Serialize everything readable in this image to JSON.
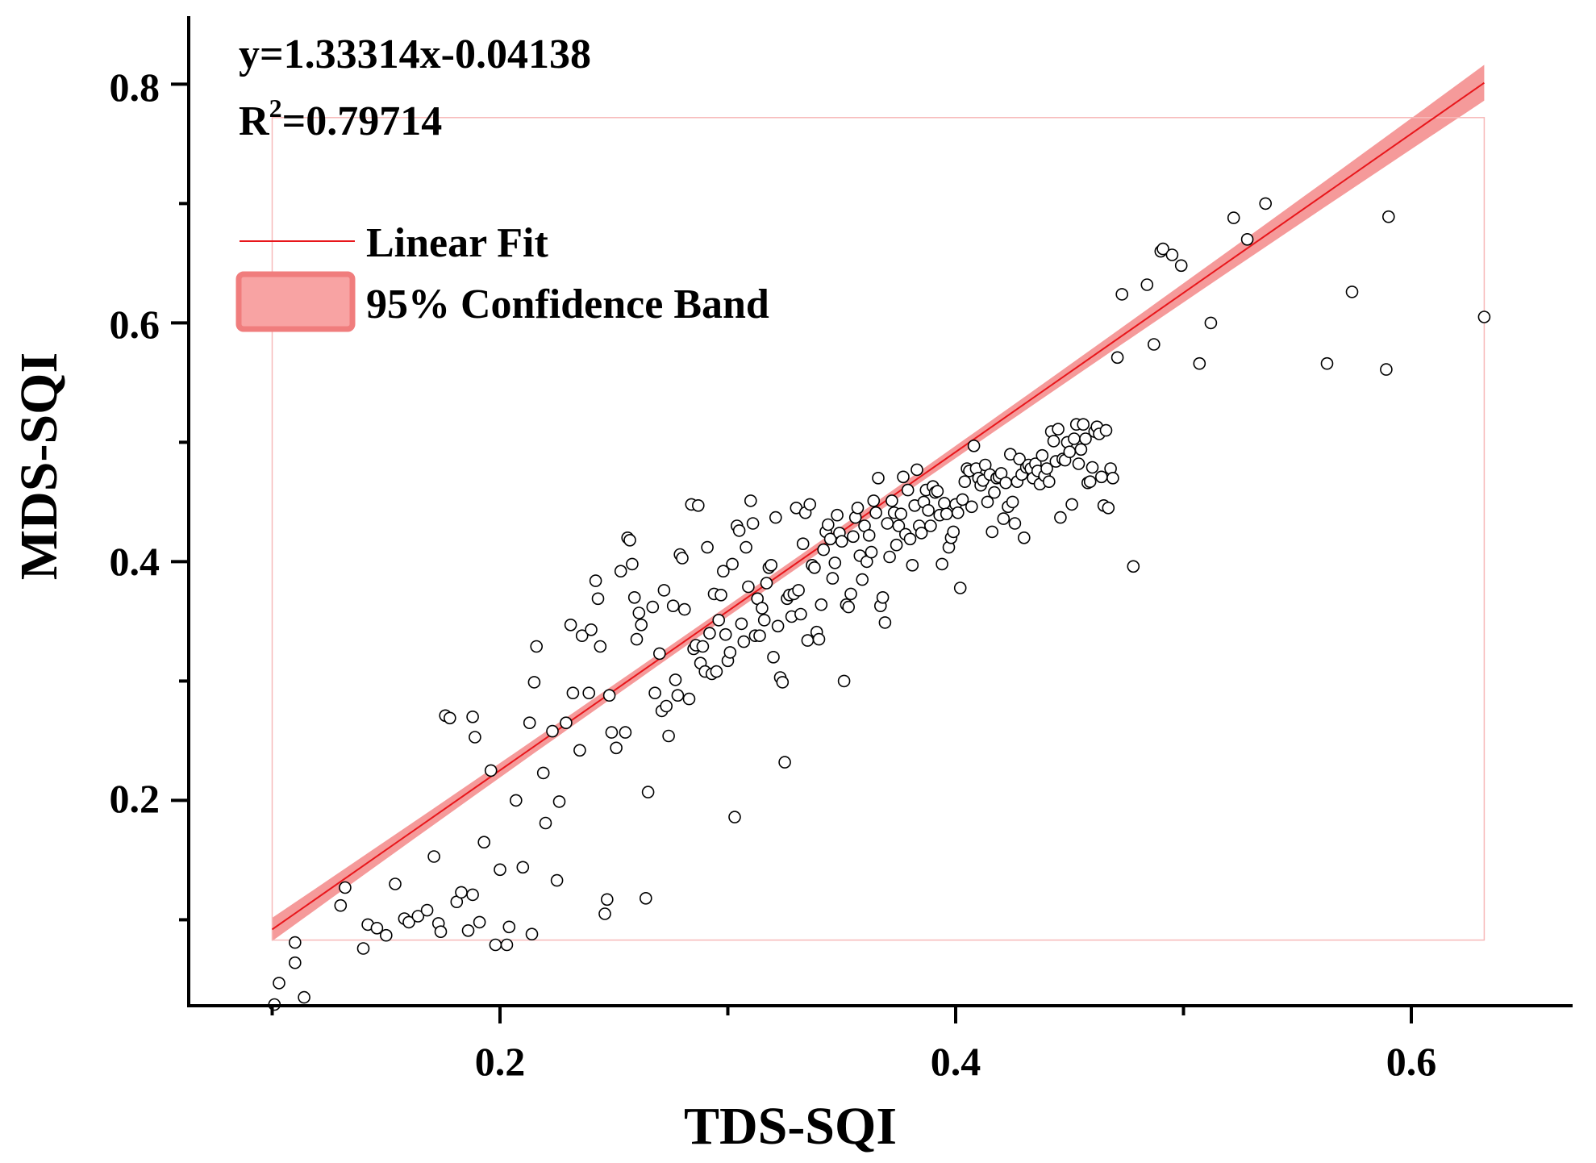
{
  "chart_data": {
    "type": "scatter",
    "xlabel": "TDS-SQI",
    "ylabel": "MDS-SQI",
    "xlim": [
      0.065,
      0.67
    ],
    "ylim": [
      0.028,
      0.857
    ],
    "x_major_ticks": [
      0.2,
      0.4,
      0.6
    ],
    "x_minor_ticks": [
      0.1,
      0.3,
      0.5
    ],
    "y_major_ticks": [
      0.2,
      0.4,
      0.6,
      0.8
    ],
    "y_minor_ticks": [
      0.1,
      0.3,
      0.5,
      0.7
    ],
    "x_tick_labels": [
      "0.2",
      "0.4",
      "0.6"
    ],
    "y_tick_labels": [
      "0.2",
      "0.4",
      "0.6",
      "0.8"
    ],
    "annotations": {
      "equation": "y=1.33314x-0.04138",
      "r2_prefix": "R",
      "r2_sup": "2",
      "r2_value": "=0.79714"
    },
    "legend": {
      "position": "top-left",
      "entries": [
        "Linear Fit",
        "95% Confidence Band"
      ]
    },
    "fit": {
      "slope": 1.33314,
      "intercept": -0.04138,
      "x_range": [
        0.1,
        0.632
      ],
      "color": "#e8161b"
    },
    "band": {
      "halfwidth_ends": 0.015,
      "halfwidth_center": 0.0045,
      "center_x": 0.32,
      "color": "#f59a9a"
    },
    "data_box": {
      "x": [
        0.1,
        0.632
      ],
      "y": [
        0.083,
        0.772
      ],
      "color": "#f7b9b9"
    },
    "points": [
      [
        0.101,
        0.029
      ],
      [
        0.103,
        0.047
      ],
      [
        0.11,
        0.064
      ],
      [
        0.11,
        0.081
      ],
      [
        0.114,
        0.035
      ],
      [
        0.13,
        0.112
      ],
      [
        0.132,
        0.127
      ],
      [
        0.14,
        0.076
      ],
      [
        0.142,
        0.096
      ],
      [
        0.146,
        0.093
      ],
      [
        0.15,
        0.087
      ],
      [
        0.154,
        0.13
      ],
      [
        0.158,
        0.101
      ],
      [
        0.16,
        0.098
      ],
      [
        0.164,
        0.103
      ],
      [
        0.168,
        0.108
      ],
      [
        0.171,
        0.153
      ],
      [
        0.173,
        0.097
      ],
      [
        0.174,
        0.09
      ],
      [
        0.176,
        0.271
      ],
      [
        0.178,
        0.269
      ],
      [
        0.181,
        0.115
      ],
      [
        0.183,
        0.123
      ],
      [
        0.186,
        0.091
      ],
      [
        0.188,
        0.121
      ],
      [
        0.188,
        0.27
      ],
      [
        0.189,
        0.253
      ],
      [
        0.191,
        0.098
      ],
      [
        0.193,
        0.165
      ],
      [
        0.196,
        0.225
      ],
      [
        0.198,
        0.079
      ],
      [
        0.2,
        0.142
      ],
      [
        0.203,
        0.079
      ],
      [
        0.204,
        0.094
      ],
      [
        0.207,
        0.2
      ],
      [
        0.21,
        0.144
      ],
      [
        0.213,
        0.265
      ],
      [
        0.214,
        0.088
      ],
      [
        0.215,
        0.299
      ],
      [
        0.216,
        0.329
      ],
      [
        0.219,
        0.223
      ],
      [
        0.22,
        0.181
      ],
      [
        0.223,
        0.258
      ],
      [
        0.225,
        0.133
      ],
      [
        0.226,
        0.199
      ],
      [
        0.229,
        0.265
      ],
      [
        0.231,
        0.347
      ],
      [
        0.232,
        0.29
      ],
      [
        0.235,
        0.242
      ],
      [
        0.236,
        0.338
      ],
      [
        0.239,
        0.29
      ],
      [
        0.24,
        0.343
      ],
      [
        0.242,
        0.384
      ],
      [
        0.243,
        0.369
      ],
      [
        0.244,
        0.329
      ],
      [
        0.246,
        0.105
      ],
      [
        0.247,
        0.117
      ],
      [
        0.248,
        0.288
      ],
      [
        0.249,
        0.257
      ],
      [
        0.251,
        0.244
      ],
      [
        0.253,
        0.392
      ],
      [
        0.255,
        0.257
      ],
      [
        0.256,
        0.42
      ],
      [
        0.257,
        0.418
      ],
      [
        0.258,
        0.398
      ],
      [
        0.259,
        0.37
      ],
      [
        0.26,
        0.335
      ],
      [
        0.261,
        0.357
      ],
      [
        0.262,
        0.347
      ],
      [
        0.264,
        0.118
      ],
      [
        0.265,
        0.207
      ],
      [
        0.267,
        0.362
      ],
      [
        0.268,
        0.29
      ],
      [
        0.27,
        0.323
      ],
      [
        0.271,
        0.275
      ],
      [
        0.272,
        0.376
      ],
      [
        0.273,
        0.279
      ],
      [
        0.274,
        0.254
      ],
      [
        0.276,
        0.363
      ],
      [
        0.277,
        0.301
      ],
      [
        0.278,
        0.288
      ],
      [
        0.279,
        0.406
      ],
      [
        0.28,
        0.403
      ],
      [
        0.281,
        0.36
      ],
      [
        0.283,
        0.285
      ],
      [
        0.284,
        0.448
      ],
      [
        0.285,
        0.327
      ],
      [
        0.286,
        0.33
      ],
      [
        0.287,
        0.447
      ],
      [
        0.288,
        0.315
      ],
      [
        0.289,
        0.329
      ],
      [
        0.29,
        0.308
      ],
      [
        0.291,
        0.412
      ],
      [
        0.292,
        0.34
      ],
      [
        0.293,
        0.306
      ],
      [
        0.294,
        0.373
      ],
      [
        0.295,
        0.308
      ],
      [
        0.296,
        0.351
      ],
      [
        0.297,
        0.372
      ],
      [
        0.298,
        0.392
      ],
      [
        0.299,
        0.339
      ],
      [
        0.3,
        0.317
      ],
      [
        0.301,
        0.324
      ],
      [
        0.302,
        0.398
      ],
      [
        0.303,
        0.186
      ],
      [
        0.304,
        0.43
      ],
      [
        0.305,
        0.426
      ],
      [
        0.306,
        0.348
      ],
      [
        0.307,
        0.333
      ],
      [
        0.308,
        0.412
      ],
      [
        0.309,
        0.379
      ],
      [
        0.31,
        0.451
      ],
      [
        0.311,
        0.432
      ],
      [
        0.312,
        0.338
      ],
      [
        0.313,
        0.369
      ],
      [
        0.314,
        0.338
      ],
      [
        0.315,
        0.361
      ],
      [
        0.316,
        0.351
      ],
      [
        0.317,
        0.382
      ],
      [
        0.318,
        0.395
      ],
      [
        0.319,
        0.397
      ],
      [
        0.32,
        0.32
      ],
      [
        0.321,
        0.437
      ],
      [
        0.322,
        0.346
      ],
      [
        0.323,
        0.303
      ],
      [
        0.324,
        0.299
      ],
      [
        0.325,
        0.232
      ],
      [
        0.326,
        0.369
      ],
      [
        0.327,
        0.372
      ],
      [
        0.328,
        0.354
      ],
      [
        0.329,
        0.373
      ],
      [
        0.33,
        0.445
      ],
      [
        0.331,
        0.376
      ],
      [
        0.332,
        0.356
      ],
      [
        0.333,
        0.415
      ],
      [
        0.334,
        0.441
      ],
      [
        0.335,
        0.334
      ],
      [
        0.336,
        0.448
      ],
      [
        0.337,
        0.397
      ],
      [
        0.338,
        0.395
      ],
      [
        0.339,
        0.341
      ],
      [
        0.34,
        0.335
      ],
      [
        0.341,
        0.364
      ],
      [
        0.342,
        0.41
      ],
      [
        0.343,
        0.425
      ],
      [
        0.344,
        0.431
      ],
      [
        0.345,
        0.419
      ],
      [
        0.346,
        0.386
      ],
      [
        0.347,
        0.399
      ],
      [
        0.348,
        0.439
      ],
      [
        0.349,
        0.424
      ],
      [
        0.35,
        0.417
      ],
      [
        0.351,
        0.3
      ],
      [
        0.352,
        0.364
      ],
      [
        0.353,
        0.362
      ],
      [
        0.354,
        0.373
      ],
      [
        0.355,
        0.421
      ],
      [
        0.356,
        0.437
      ],
      [
        0.357,
        0.445
      ],
      [
        0.358,
        0.405
      ],
      [
        0.359,
        0.385
      ],
      [
        0.36,
        0.43
      ],
      [
        0.361,
        0.4
      ],
      [
        0.362,
        0.422
      ],
      [
        0.363,
        0.408
      ],
      [
        0.364,
        0.451
      ],
      [
        0.365,
        0.441
      ],
      [
        0.366,
        0.47
      ],
      [
        0.367,
        0.363
      ],
      [
        0.368,
        0.37
      ],
      [
        0.369,
        0.349
      ],
      [
        0.37,
        0.432
      ],
      [
        0.371,
        0.404
      ],
      [
        0.372,
        0.451
      ],
      [
        0.373,
        0.441
      ],
      [
        0.374,
        0.414
      ],
      [
        0.375,
        0.43
      ],
      [
        0.376,
        0.44
      ],
      [
        0.377,
        0.471
      ],
      [
        0.378,
        0.423
      ],
      [
        0.379,
        0.46
      ],
      [
        0.38,
        0.419
      ],
      [
        0.381,
        0.397
      ],
      [
        0.382,
        0.447
      ],
      [
        0.383,
        0.477
      ],
      [
        0.384,
        0.43
      ],
      [
        0.385,
        0.424
      ],
      [
        0.386,
        0.45
      ],
      [
        0.387,
        0.46
      ],
      [
        0.388,
        0.443
      ],
      [
        0.389,
        0.43
      ],
      [
        0.39,
        0.463
      ],
      [
        0.391,
        0.458
      ],
      [
        0.392,
        0.459
      ],
      [
        0.393,
        0.439
      ],
      [
        0.394,
        0.398
      ],
      [
        0.395,
        0.449
      ],
      [
        0.396,
        0.44
      ],
      [
        0.397,
        0.412
      ],
      [
        0.398,
        0.42
      ],
      [
        0.399,
        0.425
      ],
      [
        0.4,
        0.448
      ],
      [
        0.401,
        0.441
      ],
      [
        0.402,
        0.378
      ],
      [
        0.403,
        0.452
      ],
      [
        0.404,
        0.467
      ],
      [
        0.405,
        0.478
      ],
      [
        0.406,
        0.476
      ],
      [
        0.407,
        0.446
      ],
      [
        0.408,
        0.497
      ],
      [
        0.409,
        0.478
      ],
      [
        0.41,
        0.47
      ],
      [
        0.411,
        0.464
      ],
      [
        0.412,
        0.468
      ],
      [
        0.413,
        0.481
      ],
      [
        0.414,
        0.45
      ],
      [
        0.415,
        0.473
      ],
      [
        0.416,
        0.425
      ],
      [
        0.417,
        0.458
      ],
      [
        0.418,
        0.47
      ],
      [
        0.419,
        0.471
      ],
      [
        0.42,
        0.474
      ],
      [
        0.421,
        0.436
      ],
      [
        0.422,
        0.466
      ],
      [
        0.423,
        0.446
      ],
      [
        0.424,
        0.49
      ],
      [
        0.425,
        0.45
      ],
      [
        0.426,
        0.432
      ],
      [
        0.427,
        0.467
      ],
      [
        0.428,
        0.486
      ],
      [
        0.429,
        0.473
      ],
      [
        0.43,
        0.42
      ],
      [
        0.431,
        0.479
      ],
      [
        0.432,
        0.481
      ],
      [
        0.433,
        0.478
      ],
      [
        0.434,
        0.47
      ],
      [
        0.435,
        0.482
      ],
      [
        0.436,
        0.476
      ],
      [
        0.437,
        0.465
      ],
      [
        0.438,
        0.489
      ],
      [
        0.439,
        0.472
      ],
      [
        0.44,
        0.478
      ],
      [
        0.441,
        0.467
      ],
      [
        0.442,
        0.509
      ],
      [
        0.443,
        0.501
      ],
      [
        0.444,
        0.484
      ],
      [
        0.445,
        0.511
      ],
      [
        0.446,
        0.437
      ],
      [
        0.447,
        0.486
      ],
      [
        0.448,
        0.485
      ],
      [
        0.449,
        0.5
      ],
      [
        0.45,
        0.492
      ],
      [
        0.451,
        0.448
      ],
      [
        0.452,
        0.503
      ],
      [
        0.453,
        0.515
      ],
      [
        0.454,
        0.482
      ],
      [
        0.455,
        0.494
      ],
      [
        0.456,
        0.515
      ],
      [
        0.457,
        0.503
      ],
      [
        0.458,
        0.466
      ],
      [
        0.459,
        0.467
      ],
      [
        0.46,
        0.479
      ],
      [
        0.461,
        0.509
      ],
      [
        0.462,
        0.513
      ],
      [
        0.463,
        0.507
      ],
      [
        0.464,
        0.471
      ],
      [
        0.465,
        0.447
      ],
      [
        0.466,
        0.51
      ],
      [
        0.467,
        0.445
      ],
      [
        0.468,
        0.478
      ],
      [
        0.469,
        0.47
      ],
      [
        0.471,
        0.571
      ],
      [
        0.473,
        0.624
      ],
      [
        0.478,
        0.396
      ],
      [
        0.484,
        0.632
      ],
      [
        0.487,
        0.582
      ],
      [
        0.49,
        0.66
      ],
      [
        0.491,
        0.662
      ],
      [
        0.495,
        0.657
      ],
      [
        0.499,
        0.648
      ],
      [
        0.507,
        0.566
      ],
      [
        0.512,
        0.6
      ],
      [
        0.522,
        0.688
      ],
      [
        0.528,
        0.67
      ],
      [
        0.536,
        0.7
      ],
      [
        0.563,
        0.566
      ],
      [
        0.574,
        0.626
      ],
      [
        0.589,
        0.561
      ],
      [
        0.59,
        0.689
      ],
      [
        0.632,
        0.605
      ]
    ]
  }
}
